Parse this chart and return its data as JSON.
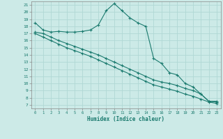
{
  "xlabel": "Humidex (Indice chaleur)",
  "bg_color": "#cceae7",
  "grid_color": "#b0d8d4",
  "line_color": "#1a7a6e",
  "xlim": [
    -0.5,
    23.5
  ],
  "ylim": [
    6.5,
    21.5
  ],
  "xticks": [
    0,
    1,
    2,
    3,
    4,
    5,
    6,
    7,
    8,
    9,
    10,
    11,
    12,
    13,
    14,
    15,
    16,
    17,
    18,
    19,
    20,
    21,
    22,
    23
  ],
  "yticks": [
    7,
    8,
    9,
    10,
    11,
    12,
    13,
    14,
    15,
    16,
    17,
    18,
    19,
    20,
    21
  ],
  "series": {
    "upper": {
      "x": [
        0,
        1,
        2,
        3,
        4,
        5,
        6,
        7,
        8,
        9,
        10,
        11,
        12,
        13,
        14,
        15,
        16,
        17,
        18,
        19,
        20,
        21,
        22,
        23
      ],
      "y": [
        18.5,
        17.5,
        17.2,
        17.3,
        17.2,
        17.2,
        17.3,
        17.5,
        18.2,
        20.2,
        21.2,
        20.2,
        19.2,
        18.5,
        18.0,
        13.5,
        12.8,
        11.5,
        11.2,
        10.0,
        9.5,
        8.5,
        7.5,
        7.5
      ]
    },
    "middle": {
      "x": [
        0,
        1,
        2,
        3,
        4,
        5,
        6,
        7,
        8,
        9,
        10,
        11,
        12,
        13,
        14,
        15,
        16,
        17,
        18,
        19,
        20,
        21,
        22,
        23
      ],
      "y": [
        17.2,
        17.0,
        16.5,
        16.0,
        15.6,
        15.2,
        14.8,
        14.4,
        14.0,
        13.5,
        13.0,
        12.5,
        12.0,
        11.5,
        11.0,
        10.5,
        10.2,
        10.0,
        9.7,
        9.3,
        9.0,
        8.5,
        7.5,
        7.4
      ]
    },
    "lower": {
      "x": [
        0,
        1,
        2,
        3,
        4,
        5,
        6,
        7,
        8,
        9,
        10,
        11,
        12,
        13,
        14,
        15,
        16,
        17,
        18,
        19,
        20,
        21,
        22,
        23
      ],
      "y": [
        17.0,
        16.5,
        16.0,
        15.5,
        15.0,
        14.6,
        14.2,
        13.8,
        13.3,
        12.8,
        12.3,
        11.8,
        11.3,
        10.8,
        10.3,
        9.8,
        9.5,
        9.2,
        8.9,
        8.5,
        8.2,
        7.8,
        7.4,
        7.2
      ]
    }
  }
}
